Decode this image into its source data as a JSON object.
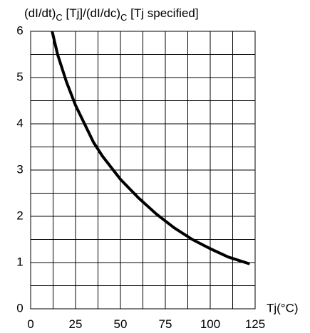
{
  "chart_data": {
    "type": "line",
    "title": "",
    "ylabel_parts": {
      "a": "(dI/dt)",
      "a_sub": "C",
      "b": " [Tj]/(dI/dc)",
      "b_sub": "C",
      "c": " [Tj specified]"
    },
    "xlabel": "Tj(°C)",
    "xlim": [
      0,
      125
    ],
    "ylim": [
      0,
      6
    ],
    "x_ticks": [
      0,
      25,
      50,
      75,
      100,
      125
    ],
    "y_ticks": [
      0,
      1,
      2,
      3,
      4,
      5,
      6
    ],
    "x_grid_step": 12.5,
    "y_grid_step": 0.5,
    "grid": true,
    "series": [
      {
        "x": [
          12,
          15,
          20,
          25,
          30,
          35,
          40,
          50,
          60,
          70,
          80,
          90,
          100,
          110,
          122
        ],
        "y": [
          6.0,
          5.5,
          4.9,
          4.4,
          4.0,
          3.6,
          3.3,
          2.8,
          2.4,
          2.05,
          1.75,
          1.5,
          1.3,
          1.12,
          0.97
        ]
      }
    ]
  }
}
